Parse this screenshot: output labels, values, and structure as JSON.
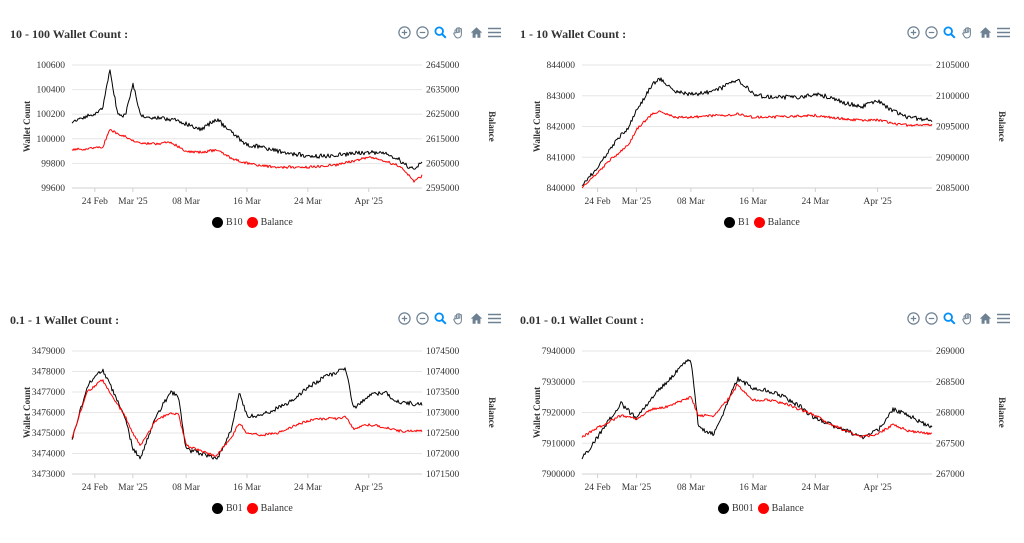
{
  "icons": {
    "zoom_in": "zoom-in-icon",
    "zoom_out": "zoom-out-icon",
    "selection_zoom": "magnifier-icon",
    "pan": "hand-icon",
    "reset": "home-icon",
    "menu": "menu-icon"
  },
  "colors": {
    "wallet_series": "#000000",
    "balance_series": "#ff0000",
    "toolbar_grey": "#6e8192",
    "toolbar_active": "#008ffb"
  },
  "chart_data": [
    {
      "type": "line",
      "title": "10 - 100 Wallet Count :",
      "xlabel": "",
      "y_left_label": "Wallet Count",
      "y_right_label": "Balance",
      "x_ticks": [
        "24 Feb",
        "Mar '25",
        "08 Mar",
        "16 Mar",
        "24 Mar",
        "Apr '25"
      ],
      "x_range": [
        "2025-02-21",
        "2025-04-08"
      ],
      "y_left_ticks": [
        "99600",
        "99800",
        "100000",
        "100200",
        "100400",
        "100600"
      ],
      "y_left_range": [
        99600,
        100600
      ],
      "y_right_ticks": [
        "2595000",
        "2605000",
        "2615000",
        "2625000",
        "2635000",
        "2645000"
      ],
      "y_right_range": [
        2595000,
        2645000
      ],
      "grid": true,
      "legend_position": "bottom",
      "series": [
        {
          "name": "B10",
          "axis": "left",
          "color": "#000000",
          "x": [
            "2025-02-21",
            "2025-02-23",
            "2025-02-25",
            "2025-02-26",
            "2025-02-27",
            "2025-02-28",
            "2025-03-01",
            "2025-03-02",
            "2025-03-03",
            "2025-03-04",
            "2025-03-06",
            "2025-03-08",
            "2025-03-10",
            "2025-03-12",
            "2025-03-14",
            "2025-03-16",
            "2025-03-18",
            "2025-03-20",
            "2025-03-22",
            "2025-03-24",
            "2025-03-26",
            "2025-03-28",
            "2025-03-30",
            "2025-04-01",
            "2025-04-03",
            "2025-04-05",
            "2025-04-06",
            "2025-04-07",
            "2025-04-08"
          ],
          "values": [
            100130,
            100180,
            100240,
            100560,
            100200,
            100190,
            100450,
            100200,
            100180,
            100170,
            100160,
            100120,
            100080,
            100160,
            100050,
            99950,
            99930,
            99900,
            99880,
            99860,
            99860,
            99870,
            99880,
            99890,
            99880,
            99830,
            99780,
            99750,
            99810
          ]
        },
        {
          "name": "Balance",
          "axis": "right",
          "color": "#ff0000",
          "x": [
            "2025-02-21",
            "2025-02-23",
            "2025-02-25",
            "2025-02-26",
            "2025-02-27",
            "2025-02-28",
            "2025-03-01",
            "2025-03-02",
            "2025-03-03",
            "2025-03-04",
            "2025-03-06",
            "2025-03-08",
            "2025-03-10",
            "2025-03-12",
            "2025-03-14",
            "2025-03-16",
            "2025-03-18",
            "2025-03-20",
            "2025-03-22",
            "2025-03-24",
            "2025-03-26",
            "2025-03-28",
            "2025-03-30",
            "2025-04-01",
            "2025-04-03",
            "2025-04-05",
            "2025-04-06",
            "2025-04-07",
            "2025-04-08"
          ],
          "values": [
            2610500,
            2611000,
            2611500,
            2619000,
            2617000,
            2616000,
            2614500,
            2613500,
            2613000,
            2613000,
            2613500,
            2610000,
            2609500,
            2610500,
            2607000,
            2605000,
            2604000,
            2603500,
            2603500,
            2603500,
            2604000,
            2604500,
            2606000,
            2607500,
            2606000,
            2604000,
            2601000,
            2597500,
            2600000
          ]
        }
      ]
    },
    {
      "type": "line",
      "title": "1 - 10 Wallet Count :",
      "xlabel": "",
      "y_left_label": "Wallet Count",
      "y_right_label": "Balance",
      "x_ticks": [
        "24 Feb",
        "Mar '25",
        "08 Mar",
        "16 Mar",
        "24 Mar",
        "Apr '25"
      ],
      "x_range": [
        "2025-02-22",
        "2025-04-08"
      ],
      "y_left_ticks": [
        "840000",
        "841000",
        "842000",
        "843000",
        "844000"
      ],
      "y_left_range": [
        840000,
        844000
      ],
      "y_right_ticks": [
        "2085000",
        "2090000",
        "2095000",
        "2100000",
        "2105000"
      ],
      "y_right_range": [
        2085000,
        2105000
      ],
      "grid": true,
      "legend_position": "bottom",
      "series": [
        {
          "name": "B1",
          "axis": "left",
          "color": "#000000",
          "x": [
            "2025-02-22",
            "2025-02-24",
            "2025-02-26",
            "2025-02-28",
            "2025-03-01",
            "2025-03-03",
            "2025-03-04",
            "2025-03-06",
            "2025-03-08",
            "2025-03-10",
            "2025-03-12",
            "2025-03-14",
            "2025-03-16",
            "2025-03-18",
            "2025-03-20",
            "2025-03-22",
            "2025-03-24",
            "2025-03-26",
            "2025-03-28",
            "2025-03-30",
            "2025-04-01",
            "2025-04-03",
            "2025-04-05",
            "2025-04-08"
          ],
          "values": [
            840050,
            840700,
            841400,
            842000,
            842500,
            843350,
            843550,
            843150,
            843050,
            843100,
            843250,
            843550,
            843050,
            842950,
            842950,
            842950,
            843050,
            842950,
            842750,
            842650,
            842850,
            842500,
            842300,
            842200
          ]
        },
        {
          "name": "Balance",
          "axis": "right",
          "color": "#ff0000",
          "x": [
            "2025-02-22",
            "2025-02-24",
            "2025-02-26",
            "2025-02-28",
            "2025-03-01",
            "2025-03-03",
            "2025-03-04",
            "2025-03-06",
            "2025-03-08",
            "2025-03-10",
            "2025-03-12",
            "2025-03-14",
            "2025-03-16",
            "2025-03-18",
            "2025-03-20",
            "2025-03-22",
            "2025-03-24",
            "2025-03-26",
            "2025-03-28",
            "2025-03-30",
            "2025-04-01",
            "2025-04-03",
            "2025-04-05",
            "2025-04-08"
          ],
          "values": [
            2085200,
            2087500,
            2090000,
            2092000,
            2094500,
            2097000,
            2097500,
            2096500,
            2096500,
            2096700,
            2096800,
            2097000,
            2096500,
            2096500,
            2096600,
            2096700,
            2096800,
            2096500,
            2096200,
            2096000,
            2096100,
            2095500,
            2095200,
            2095300
          ]
        }
      ]
    },
    {
      "type": "line",
      "title": "0.1 - 1 Wallet Count :",
      "xlabel": "",
      "y_left_label": "Wallet Count",
      "y_right_label": "Balance",
      "x_ticks": [
        "24 Feb",
        "Mar '25",
        "08 Mar",
        "16 Mar",
        "24 Mar",
        "Apr '25"
      ],
      "x_range": [
        "2025-02-21",
        "2025-04-08"
      ],
      "y_left_ticks": [
        "3473000",
        "3474000",
        "3475000",
        "3476000",
        "3477000",
        "3478000",
        "3479000"
      ],
      "y_left_range": [
        3473000,
        3479000
      ],
      "y_right_ticks": [
        "1071500",
        "1072000",
        "1072500",
        "1073000",
        "1073500",
        "1074000",
        "1074500"
      ],
      "y_right_range": [
        1071500,
        1074500
      ],
      "grid": true,
      "legend_position": "bottom",
      "series": [
        {
          "name": "B01",
          "axis": "left",
          "color": "#000000",
          "x": [
            "2025-02-21",
            "2025-02-23",
            "2025-02-25",
            "2025-02-27",
            "2025-02-28",
            "2025-03-01",
            "2025-03-02",
            "2025-03-04",
            "2025-03-06",
            "2025-03-07",
            "2025-03-08",
            "2025-03-10",
            "2025-03-12",
            "2025-03-14",
            "2025-03-15",
            "2025-03-16",
            "2025-03-18",
            "2025-03-20",
            "2025-03-22",
            "2025-03-24",
            "2025-03-26",
            "2025-03-28",
            "2025-03-29",
            "2025-03-30",
            "2025-04-01",
            "2025-04-03",
            "2025-04-05",
            "2025-04-08"
          ],
          "values": [
            3474700,
            3477300,
            3478100,
            3476600,
            3475800,
            3474200,
            3473800,
            3475800,
            3477000,
            3476800,
            3474200,
            3474000,
            3473700,
            3475200,
            3477000,
            3475800,
            3475900,
            3476200,
            3476600,
            3477200,
            3477700,
            3478000,
            3478100,
            3476200,
            3476800,
            3477000,
            3476500,
            3476400
          ]
        },
        {
          "name": "Balance",
          "axis": "right",
          "color": "#ff0000",
          "x": [
            "2025-02-21",
            "2025-02-23",
            "2025-02-25",
            "2025-02-27",
            "2025-02-28",
            "2025-03-01",
            "2025-03-02",
            "2025-03-04",
            "2025-03-06",
            "2025-03-07",
            "2025-03-08",
            "2025-03-10",
            "2025-03-12",
            "2025-03-14",
            "2025-03-15",
            "2025-03-16",
            "2025-03-18",
            "2025-03-20",
            "2025-03-22",
            "2025-03-24",
            "2025-03-26",
            "2025-03-28",
            "2025-03-29",
            "2025-03-30",
            "2025-04-01",
            "2025-04-03",
            "2025-04-05",
            "2025-04-08"
          ],
          "values": [
            1072400,
            1073500,
            1073800,
            1073200,
            1072900,
            1072500,
            1072200,
            1072800,
            1073000,
            1072950,
            1072200,
            1072050,
            1071950,
            1072400,
            1072750,
            1072500,
            1072450,
            1072500,
            1072650,
            1072800,
            1072850,
            1072850,
            1072900,
            1072600,
            1072700,
            1072650,
            1072550,
            1072550
          ]
        }
      ]
    },
    {
      "type": "line",
      "title": "0.01 - 0.1 Wallet Count :",
      "xlabel": "",
      "y_left_label": "Wallet Count",
      "y_right_label": "Balance",
      "x_ticks": [
        "24 Feb",
        "Mar '25",
        "08 Mar",
        "16 Mar",
        "24 Mar",
        "Apr '25"
      ],
      "x_range": [
        "2025-02-22",
        "2025-04-08"
      ],
      "y_left_ticks": [
        "7900000",
        "7910000",
        "7920000",
        "7930000",
        "7940000"
      ],
      "y_left_range": [
        7900000,
        7940000
      ],
      "y_right_ticks": [
        "267000",
        "267500",
        "268000",
        "268500",
        "269000"
      ],
      "y_right_range": [
        267000,
        269000
      ],
      "grid": true,
      "legend_position": "bottom",
      "series": [
        {
          "name": "B001",
          "axis": "left",
          "color": "#000000",
          "x": [
            "2025-02-22",
            "2025-02-24",
            "2025-02-27",
            "2025-03-01",
            "2025-03-03",
            "2025-03-05",
            "2025-03-07",
            "2025-03-08",
            "2025-03-09",
            "2025-03-11",
            "2025-03-13",
            "2025-03-14",
            "2025-03-16",
            "2025-03-18",
            "2025-03-20",
            "2025-03-22",
            "2025-03-24",
            "2025-03-26",
            "2025-03-28",
            "2025-03-30",
            "2025-04-01",
            "2025-04-03",
            "2025-04-05",
            "2025-04-08"
          ],
          "values": [
            7905000,
            7912000,
            7923000,
            7918000,
            7925000,
            7930000,
            7936000,
            7937000,
            7915000,
            7913000,
            7925000,
            7931000,
            7928000,
            7927000,
            7925000,
            7922000,
            7918000,
            7916000,
            7914000,
            7912000,
            7914000,
            7921000,
            7919000,
            7915000
          ]
        },
        {
          "name": "Balance",
          "axis": "right",
          "color": "#ff0000",
          "x": [
            "2025-02-22",
            "2025-02-24",
            "2025-02-27",
            "2025-03-01",
            "2025-03-03",
            "2025-03-05",
            "2025-03-07",
            "2025-03-08",
            "2025-03-09",
            "2025-03-11",
            "2025-03-13",
            "2025-03-14",
            "2025-03-16",
            "2025-03-18",
            "2025-03-20",
            "2025-03-22",
            "2025-03-24",
            "2025-03-26",
            "2025-03-28",
            "2025-03-30",
            "2025-04-01",
            "2025-04-03",
            "2025-04-05",
            "2025-04-08"
          ],
          "values": [
            267600,
            267750,
            267950,
            267900,
            268050,
            268100,
            268200,
            268250,
            267950,
            267950,
            268250,
            268450,
            268200,
            268200,
            268150,
            268050,
            267950,
            267800,
            267700,
            267600,
            267650,
            267800,
            267700,
            267650
          ]
        }
      ]
    }
  ]
}
